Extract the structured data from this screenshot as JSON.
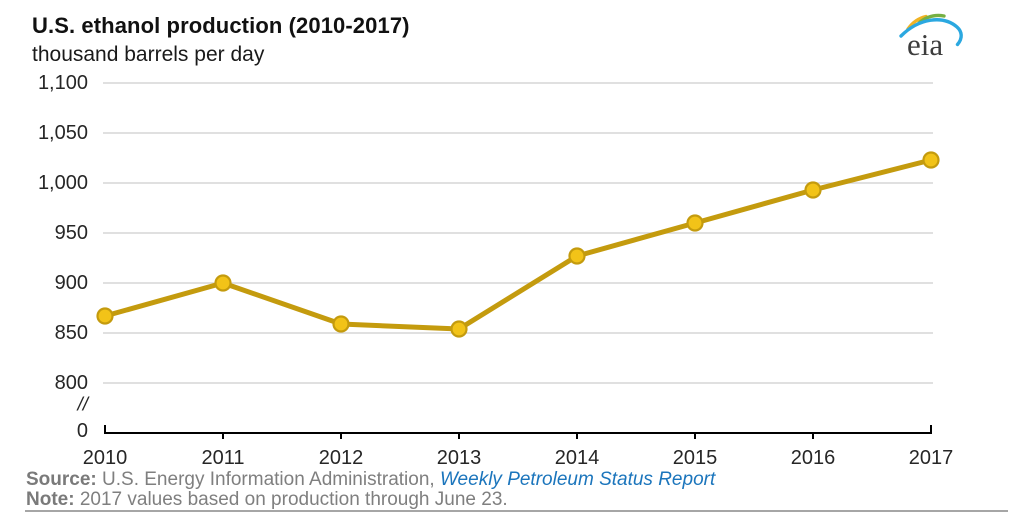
{
  "header": {
    "title": "U.S. ethanol production (2010-2017)",
    "subtitle": "thousand barrels per day"
  },
  "logo": {
    "text": "eia"
  },
  "chart_data": {
    "type": "line",
    "title": "U.S. ethanol production (2010-2017)",
    "ylabel": "thousand barrels per day",
    "xlabel": "",
    "x": [
      "2010",
      "2011",
      "2012",
      "2013",
      "2014",
      "2015",
      "2016",
      "2017"
    ],
    "series": [
      {
        "name": "U.S. ethanol production (thousand barrels per day)",
        "values": [
          867,
          900,
          859,
          854,
          927,
          960,
          993,
          1023
        ]
      }
    ],
    "ylim": [
      800,
      1100
    ],
    "y_ticks": [
      800,
      850,
      900,
      950,
      1000,
      1050,
      1100
    ],
    "y_tick_labels": [
      "800",
      "850",
      "900",
      "950",
      "1,000",
      "1,050",
      "1,100"
    ],
    "zero_label": "0",
    "axis_break_label": "//",
    "grid": true,
    "legend": "none",
    "colors": {
      "line": "#c49b0e",
      "marker_fill": "#f2c318",
      "marker_stroke": "#c49b0e",
      "grid": "#d6d6d6",
      "axis": "#000000"
    }
  },
  "footer": {
    "source_label": "Source:",
    "source_rest": " U.S. Energy Information Administration, ",
    "source_link": "Weekly Petroleum Status Report",
    "note_label": "Note:",
    "note_rest": " 2017 values based on production through June 23."
  }
}
